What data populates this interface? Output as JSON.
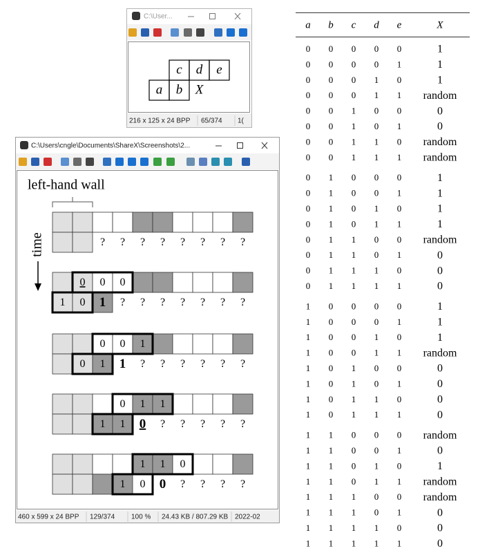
{
  "small_window": {
    "title": "C:\\User...",
    "diagram": {
      "top_row": [
        "c",
        "d",
        "e"
      ],
      "bottom_row": [
        "a",
        "b",
        "X"
      ]
    },
    "status": [
      "216 x 125 x 24 BPP",
      "65/374",
      "1("
    ]
  },
  "large_window": {
    "title": "C:\\Users\\cngle\\Documents\\ShareX\\Screenshots\\2...",
    "wall_label": "left-hand wall",
    "time_label": "time",
    "panels": [
      {
        "top": [
          null,
          null,
          null,
          null,
          null,
          null,
          null,
          null,
          null,
          null
        ],
        "bottom": [
          null,
          null,
          "?",
          "?",
          "?",
          "?",
          "?",
          "?",
          "?",
          "?"
        ]
      },
      {
        "top": [
          null,
          "0",
          "0",
          "0",
          null,
          null,
          null,
          null,
          null,
          null
        ],
        "bottom": [
          "1",
          "0",
          "1",
          "?",
          "?",
          "?",
          "?",
          "?",
          "?",
          "?"
        ]
      },
      {
        "top": [
          null,
          null,
          "0",
          "0",
          "1",
          null,
          null,
          null,
          null,
          null
        ],
        "bottom": [
          null,
          "0",
          "1",
          "1",
          "?",
          "?",
          "?",
          "?",
          "?",
          "?"
        ]
      },
      {
        "top": [
          null,
          null,
          null,
          "0",
          "1",
          "1",
          null,
          null,
          null,
          null
        ],
        "bottom": [
          null,
          null,
          "1",
          "1",
          "0",
          "?",
          "?",
          "?",
          "?",
          "?"
        ]
      },
      {
        "top": [
          null,
          null,
          null,
          null,
          "1",
          "1",
          "0",
          null,
          null,
          null
        ],
        "bottom": [
          null,
          null,
          null,
          "1",
          "0",
          "0",
          "?",
          "?",
          "?",
          "?"
        ]
      }
    ],
    "status": [
      "460 x 599 x 24 BPP",
      "129/374",
      "100 %",
      "24.43 KB / 807.29 KB",
      "2022-02"
    ]
  },
  "table": {
    "header": [
      "a",
      "b",
      "c",
      "d",
      "e",
      "X"
    ],
    "rows": [
      [
        "0",
        "0",
        "0",
        "0",
        "0",
        "1"
      ],
      [
        "0",
        "0",
        "0",
        "0",
        "1",
        "1"
      ],
      [
        "0",
        "0",
        "0",
        "1",
        "0",
        "1"
      ],
      [
        "0",
        "0",
        "0",
        "1",
        "1",
        "random"
      ],
      [
        "0",
        "0",
        "1",
        "0",
        "0",
        "0"
      ],
      [
        "0",
        "0",
        "1",
        "0",
        "1",
        "0"
      ],
      [
        "0",
        "0",
        "1",
        "1",
        "0",
        "random"
      ],
      [
        "0",
        "0",
        "1",
        "1",
        "1",
        "random"
      ],
      [
        "0",
        "1",
        "0",
        "0",
        "0",
        "1"
      ],
      [
        "0",
        "1",
        "0",
        "0",
        "1",
        "1"
      ],
      [
        "0",
        "1",
        "0",
        "1",
        "0",
        "1"
      ],
      [
        "0",
        "1",
        "0",
        "1",
        "1",
        "1"
      ],
      [
        "0",
        "1",
        "1",
        "0",
        "0",
        "random"
      ],
      [
        "0",
        "1",
        "1",
        "0",
        "1",
        "0"
      ],
      [
        "0",
        "1",
        "1",
        "1",
        "0",
        "0"
      ],
      [
        "0",
        "1",
        "1",
        "1",
        "1",
        "0"
      ],
      [
        "1",
        "0",
        "0",
        "0",
        "0",
        "1"
      ],
      [
        "1",
        "0",
        "0",
        "0",
        "1",
        "1"
      ],
      [
        "1",
        "0",
        "0",
        "1",
        "0",
        "1"
      ],
      [
        "1",
        "0",
        "0",
        "1",
        "1",
        "random"
      ],
      [
        "1",
        "0",
        "1",
        "0",
        "0",
        "0"
      ],
      [
        "1",
        "0",
        "1",
        "0",
        "1",
        "0"
      ],
      [
        "1",
        "0",
        "1",
        "1",
        "0",
        "0"
      ],
      [
        "1",
        "0",
        "1",
        "1",
        "1",
        "0"
      ],
      [
        "1",
        "1",
        "0",
        "0",
        "0",
        "random"
      ],
      [
        "1",
        "1",
        "0",
        "0",
        "1",
        "0"
      ],
      [
        "1",
        "1",
        "0",
        "1",
        "0",
        "1"
      ],
      [
        "1",
        "1",
        "0",
        "1",
        "1",
        "random"
      ],
      [
        "1",
        "1",
        "1",
        "0",
        "0",
        "random"
      ],
      [
        "1",
        "1",
        "1",
        "0",
        "1",
        "0"
      ],
      [
        "1",
        "1",
        "1",
        "1",
        "0",
        "0"
      ],
      [
        "1",
        "1",
        "1",
        "1",
        "1",
        "0"
      ]
    ]
  }
}
